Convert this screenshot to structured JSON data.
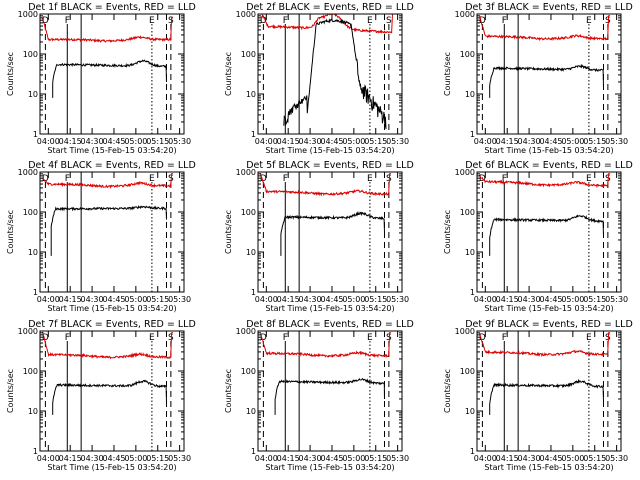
{
  "chart_data": {
    "type": "line",
    "title_format": "Det {n}f BLACK = Events, RED = LLD",
    "xlabel": "Start Time (15-Feb-15 03:54:20)",
    "ylabel": "Counts/sec",
    "x_tick_labels": [
      "04:00",
      "04:15",
      "04:30",
      "04:45",
      "05:00",
      "05:15",
      "05:30"
    ],
    "x_tick_minutes": [
      0,
      15,
      30,
      45,
      60,
      75,
      90
    ],
    "xlim_minutes": [
      -5.7,
      93
    ],
    "y_scale": "log",
    "ylim": [
      1,
      1000
    ],
    "y_tick_labels": [
      "1",
      "10",
      "100",
      "1000"
    ],
    "y_tick_values": [
      1,
      10,
      100,
      1000
    ],
    "markers": [
      {
        "label": "D",
        "minute": -2,
        "style": "dashed"
      },
      {
        "label": "F",
        "minute": 13,
        "style": "solid"
      },
      {
        "label": "",
        "minute": 22.5,
        "style": "solid"
      },
      {
        "label": "E",
        "minute": 71,
        "style": "dotted"
      },
      {
        "label": "",
        "minute": 81,
        "style": "dashed"
      },
      {
        "label": "S",
        "minute": 84,
        "style": "dashed"
      }
    ],
    "series_colors": {
      "events": "#000000",
      "lld": "#dd0000"
    },
    "panels": [
      {
        "title": "Det 1f BLACK = Events, RED = LLD",
        "det": 1,
        "lld": {
          "start": -4,
          "end": 84,
          "start_val": 800,
          "base": 230,
          "end_val": 230,
          "spike": 800
        },
        "events": {
          "start": 3,
          "end": 81,
          "base": 55,
          "hump": 1.3,
          "end_val": 40
        }
      },
      {
        "title": "Det 2f BLACK = Events, RED = LLD",
        "det": 2,
        "lld": {
          "start": -3,
          "end": 86,
          "start_val": 1000,
          "base": 500,
          "end_val": 350,
          "spike": 1000
        },
        "events": {
          "start": 12,
          "end": 82,
          "base": 2,
          "plateau": 600,
          "end_val": 3
        }
      },
      {
        "title": "Det 3f BLACK = Events, RED = LLD",
        "det": 3,
        "lld": {
          "start": -4,
          "end": 84,
          "start_val": 900,
          "base": 280,
          "end_val": 240,
          "spike": 900
        },
        "events": {
          "start": 3,
          "end": 81,
          "base": 45,
          "hump": 1.2,
          "end_val": 30
        }
      },
      {
        "title": "Det 4f BLACK = Events, RED = LLD",
        "det": 4,
        "lld": {
          "start": -4,
          "end": 84,
          "start_val": 700,
          "base": 500,
          "end_val": 450,
          "spike": 900
        },
        "events": {
          "start": 2,
          "end": 81,
          "base": 120,
          "hump": 1.1,
          "end_val": 130
        }
      },
      {
        "title": "Det 5f BLACK = Events, RED = LLD",
        "det": 5,
        "lld": {
          "start": -4,
          "end": 84,
          "start_val": 900,
          "base": 330,
          "end_val": 280,
          "spike": 900
        },
        "events": {
          "start": 10,
          "end": 81,
          "base": 75,
          "hump": 1.3,
          "end_val": 60
        }
      },
      {
        "title": "Det 6f BLACK = Events, RED = LLD",
        "det": 6,
        "lld": {
          "start": -4,
          "end": 84,
          "start_val": 800,
          "base": 580,
          "end_val": 450,
          "spike": 900
        },
        "events": {
          "start": 3,
          "end": 81,
          "base": 65,
          "hump": 1.3,
          "end_val": 50
        }
      },
      {
        "title": "Det 7f BLACK = Events, RED = LLD",
        "det": 7,
        "lld": {
          "start": -4,
          "end": 84,
          "start_val": 1000,
          "base": 260,
          "end_val": 220,
          "spike": 900
        },
        "events": {
          "start": 3,
          "end": 81,
          "base": 45,
          "hump": 1.3,
          "end_val": 35
        }
      },
      {
        "title": "Det 8f BLACK = Events, RED = LLD",
        "det": 8,
        "lld": {
          "start": -4,
          "end": 84,
          "start_val": 900,
          "base": 280,
          "end_val": 240,
          "spike": 900
        },
        "events": {
          "start": 6,
          "end": 81,
          "base": 55,
          "hump": 1.2,
          "end_val": 40
        }
      },
      {
        "title": "Det 9f BLACK = Events, RED = LLD",
        "det": 9,
        "lld": {
          "start": -4,
          "end": 84,
          "start_val": 900,
          "base": 300,
          "end_val": 260,
          "spike": 900
        },
        "events": {
          "start": 3,
          "end": 81,
          "base": 45,
          "hump": 1.3,
          "end_val": 35
        }
      }
    ]
  }
}
